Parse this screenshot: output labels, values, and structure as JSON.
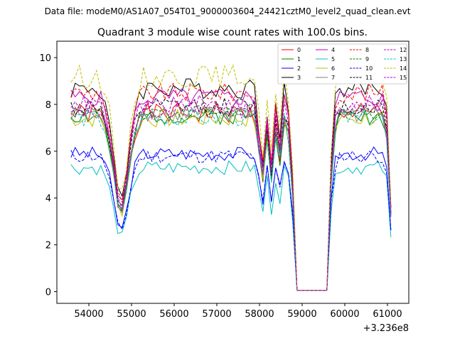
{
  "chart_data": {
    "type": "line",
    "suptitle": "Data file: modeM0/AS1A07_054T01_9000003604_24421cztM0_level2_quad_clean.evt",
    "title": "Quadrant 3 module wise count rates with 100.0s bins.",
    "offset_label": "+3.236e8",
    "xlabel": "",
    "ylabel": "",
    "xlim": [
      53250,
      61500
    ],
    "ylim": [
      -0.5,
      10.7
    ],
    "xticks": [
      54000,
      55000,
      56000,
      57000,
      58000,
      59000,
      60000,
      61000
    ],
    "xtick_labels": [
      "54000",
      "55000",
      "56000",
      "57000",
      "58000",
      "59000",
      "60000",
      "61000"
    ],
    "yticks": [
      0,
      2,
      4,
      6,
      8,
      10
    ],
    "ytick_labels": [
      "0",
      "2",
      "4",
      "6",
      "8",
      "10"
    ],
    "legend_position": "top-right",
    "series": [
      {
        "name": "0",
        "color": "#ff0000",
        "style": "solid",
        "base": 7.6,
        "amp": 0.45,
        "seed": 1
      },
      {
        "name": "1",
        "color": "#008000",
        "style": "solid",
        "base": 7.5,
        "amp": 0.35,
        "seed": 2
      },
      {
        "name": "2",
        "color": "#0000ff",
        "style": "solid",
        "base": 5.9,
        "amp": 0.3,
        "seed": 3
      },
      {
        "name": "3",
        "color": "#000000",
        "style": "solid",
        "base": 8.7,
        "amp": 0.45,
        "seed": 4
      },
      {
        "name": "4",
        "color": "#bf00bf",
        "style": "solid",
        "base": 8.3,
        "amp": 0.4,
        "seed": 5
      },
      {
        "name": "5",
        "color": "#00bfbf",
        "style": "solid",
        "base": 5.3,
        "amp": 0.3,
        "seed": 6
      },
      {
        "name": "6",
        "color": "#bfbf00",
        "style": "solid",
        "base": 7.4,
        "amp": 0.4,
        "seed": 7
      },
      {
        "name": "7",
        "color": "#808080",
        "style": "solid",
        "base": 7.6,
        "amp": 0.35,
        "seed": 8
      },
      {
        "name": "8",
        "color": "#ff0000",
        "style": "dashed",
        "base": 8.5,
        "amp": 0.4,
        "seed": 9
      },
      {
        "name": "9",
        "color": "#008000",
        "style": "dashed",
        "base": 7.7,
        "amp": 0.35,
        "seed": 10
      },
      {
        "name": "10",
        "color": "#0000ff",
        "style": "dashed",
        "base": 5.8,
        "amp": 0.3,
        "seed": 11
      },
      {
        "name": "11",
        "color": "#000000",
        "style": "dashed",
        "base": 7.9,
        "amp": 0.4,
        "seed": 12
      },
      {
        "name": "12",
        "color": "#bf00bf",
        "style": "dashed",
        "base": 7.8,
        "amp": 0.4,
        "seed": 13
      },
      {
        "name": "13",
        "color": "#00bfbf",
        "style": "dashed",
        "base": 7.4,
        "amp": 0.35,
        "seed": 14
      },
      {
        "name": "14",
        "color": "#bfbf00",
        "style": "dashed",
        "base": 9.2,
        "amp": 0.5,
        "seed": 15
      },
      {
        "name": "15",
        "color": "#bf00bf",
        "style": "dashed",
        "base": 8.0,
        "amp": 0.4,
        "seed": 16
      }
    ],
    "time_points": {
      "start": 53580,
      "end": 61150,
      "step": 100
    },
    "gaps": [
      {
        "from": 58850,
        "to": 59650,
        "value": 0.05
      }
    ],
    "dips": [
      {
        "center": 54750,
        "width": 250,
        "depth": 0.55
      },
      {
        "center": 58050,
        "width": 80,
        "depth": 0.4
      },
      {
        "center": 58280,
        "width": 80,
        "depth": 0.35
      },
      {
        "center": 58480,
        "width": 60,
        "depth": 0.25
      },
      {
        "center": 61150,
        "width": 120,
        "depth": 0.8
      }
    ]
  }
}
